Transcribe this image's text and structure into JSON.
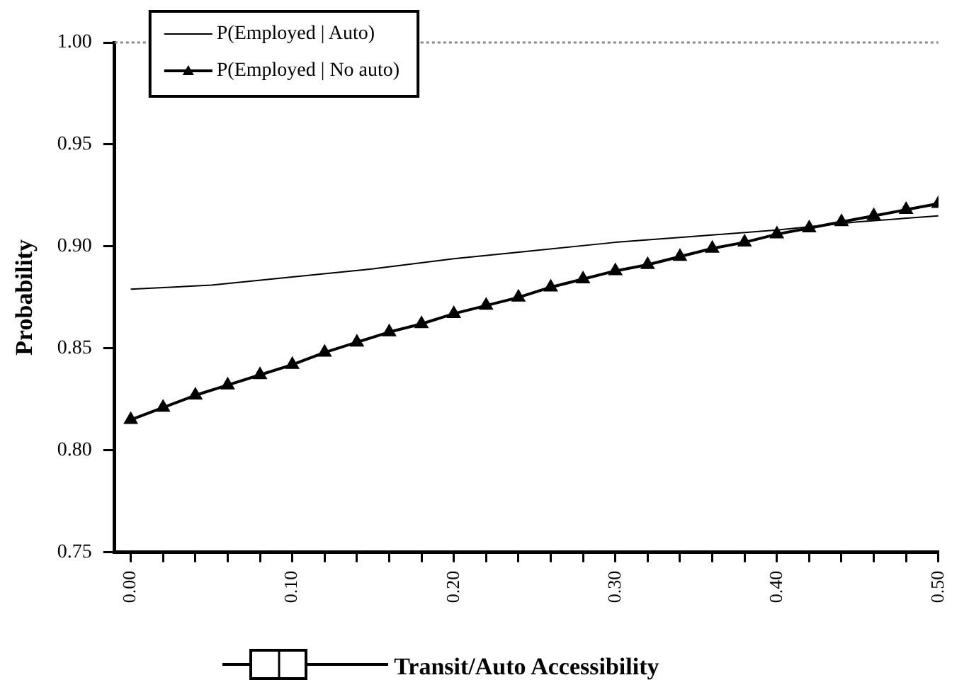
{
  "chart_data": {
    "type": "line",
    "xlabel": "Transit/Auto Accessibility",
    "ylabel": "Probability",
    "legend": "top left",
    "grid": false,
    "xlim": [
      -0.01,
      0.5
    ],
    "ylim": [
      0.75,
      1.0
    ],
    "xticks": [
      {
        "value": 0,
        "label": "0.00"
      },
      {
        "value": 0.02,
        "label": null
      },
      {
        "value": 0.04,
        "label": null
      },
      {
        "value": 0.06,
        "label": null
      },
      {
        "value": 0.08,
        "label": null
      },
      {
        "value": 0.1,
        "label": "0.10"
      },
      {
        "value": 0.12,
        "label": null
      },
      {
        "value": 0.14,
        "label": null
      },
      {
        "value": 0.16,
        "label": null
      },
      {
        "value": 0.18,
        "label": null
      },
      {
        "value": 0.2,
        "label": "0.20"
      },
      {
        "value": 0.22,
        "label": null
      },
      {
        "value": 0.24,
        "label": null
      },
      {
        "value": 0.26,
        "label": null
      },
      {
        "value": 0.28,
        "label": null
      },
      {
        "value": 0.3,
        "label": "0.30"
      },
      {
        "value": 0.32,
        "label": null
      },
      {
        "value": 0.34,
        "label": null
      },
      {
        "value": 0.36,
        "label": null
      },
      {
        "value": 0.38,
        "label": null
      },
      {
        "value": 0.4,
        "label": "0.40"
      },
      {
        "value": 0.42,
        "label": null
      },
      {
        "value": 0.44,
        "label": null
      },
      {
        "value": 0.46,
        "label": null
      },
      {
        "value": 0.48,
        "label": null
      },
      {
        "value": 0.5,
        "label": "0.50"
      }
    ],
    "yticks": [
      {
        "value": 0.75,
        "label": "0.75"
      },
      {
        "value": 0.8,
        "label": "0.80"
      },
      {
        "value": 0.85,
        "label": "0.85"
      },
      {
        "value": 0.9,
        "label": "0.90"
      },
      {
        "value": 0.95,
        "label": "0.95"
      },
      {
        "value": 1.0,
        "label": "1.00"
      }
    ],
    "ref_lines": [
      {
        "axis": "y",
        "value": 1.0,
        "color": "#888888",
        "line_style": "dotted"
      }
    ],
    "series": [
      {
        "name": "P(Employed | Auto)",
        "color": "#000000",
        "marker": "none",
        "x": [
          0,
          0.05,
          0.1,
          0.15,
          0.2,
          0.25,
          0.3,
          0.35,
          0.4,
          0.45,
          0.5
        ],
        "values": [
          0.879,
          0.881,
          0.885,
          0.889,
          0.894,
          0.898,
          0.902,
          0.905,
          0.908,
          0.912,
          0.915
        ]
      },
      {
        "name": "P(Employed | No auto)",
        "color": "#000000",
        "marker": "triangle",
        "x": [
          0,
          0.02,
          0.04,
          0.06,
          0.08,
          0.1,
          0.12,
          0.14,
          0.16,
          0.18,
          0.2,
          0.22,
          0.24,
          0.26,
          0.28,
          0.3,
          0.32,
          0.34,
          0.36,
          0.38,
          0.4,
          0.42,
          0.44,
          0.46,
          0.48,
          0.5
        ],
        "values": [
          0.815,
          0.821,
          0.827,
          0.832,
          0.837,
          0.842,
          0.848,
          0.853,
          0.858,
          0.862,
          0.867,
          0.871,
          0.875,
          0.88,
          0.884,
          0.888,
          0.891,
          0.895,
          0.899,
          0.902,
          0.906,
          0.909,
          0.912,
          0.915,
          0.918,
          0.921
        ]
      }
    ]
  }
}
